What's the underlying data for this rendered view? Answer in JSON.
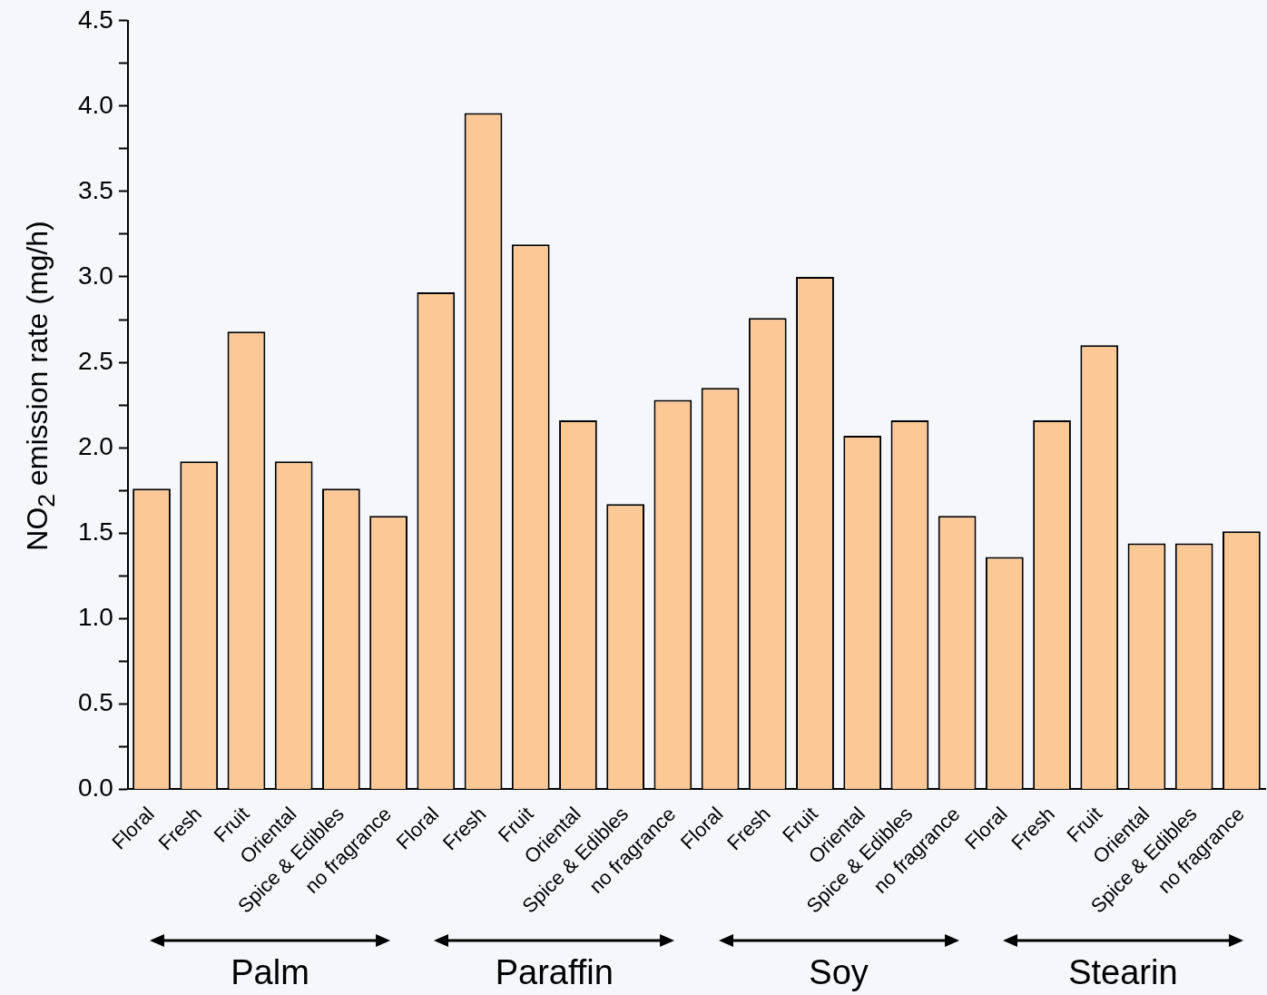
{
  "chart_data": {
    "type": "bar",
    "ylabel": "NO$_{2}$ emission rate (mg/h)",
    "categories": [
      "Floral",
      "Fresh",
      "Fruit",
      "Oriental",
      "Spice & Edibles",
      "no fragrance",
      "Floral",
      "Fresh",
      "Fruit",
      "Oriental",
      "Spice & Edibles",
      "no fragrance",
      "Floral",
      "Fresh",
      "Fruit",
      "Oriental",
      "Spice & Edibles",
      "no fragrance",
      "Floral",
      "Fresh",
      "Fruit",
      "Oriental",
      "Spice & Edibles",
      "no fragrance"
    ],
    "values": [
      1.76,
      1.92,
      2.68,
      1.92,
      1.76,
      1.6,
      2.91,
      3.96,
      3.19,
      2.16,
      1.67,
      2.28,
      2.35,
      2.76,
      3.0,
      2.07,
      2.16,
      1.6,
      1.36,
      2.16,
      2.6,
      1.44,
      1.44,
      1.51
    ],
    "color": "#fcc896",
    "ylim": [
      0,
      4.5
    ],
    "yticks": [
      {
        "value": 0,
        "label": "0.0"
      },
      {
        "value": 0.25,
        "label": null
      },
      {
        "value": 0.5,
        "label": "0.5"
      },
      {
        "value": 0.75,
        "label": null
      },
      {
        "value": 1,
        "label": "1.0"
      },
      {
        "value": 1.25,
        "label": null
      },
      {
        "value": 1.5,
        "label": "1.5"
      },
      {
        "value": 1.75,
        "label": null
      },
      {
        "value": 2,
        "label": "2.0"
      },
      {
        "value": 2.25,
        "label": null
      },
      {
        "value": 2.5,
        "label": "2.5"
      },
      {
        "value": 2.75,
        "label": null
      },
      {
        "value": 3,
        "label": "3.0"
      },
      {
        "value": 3.25,
        "label": null
      },
      {
        "value": 3.5,
        "label": "3.5"
      },
      {
        "value": 3.75,
        "label": null
      },
      {
        "value": 4,
        "label": "4.0"
      },
      {
        "value": 4.25,
        "label": null
      },
      {
        "value": 4.5,
        "label": "4.5"
      }
    ],
    "annotations": [
      "Palm",
      "Paraffin",
      "Soy",
      "Stearin"
    ],
    "grid": false,
    "legend": false
  }
}
